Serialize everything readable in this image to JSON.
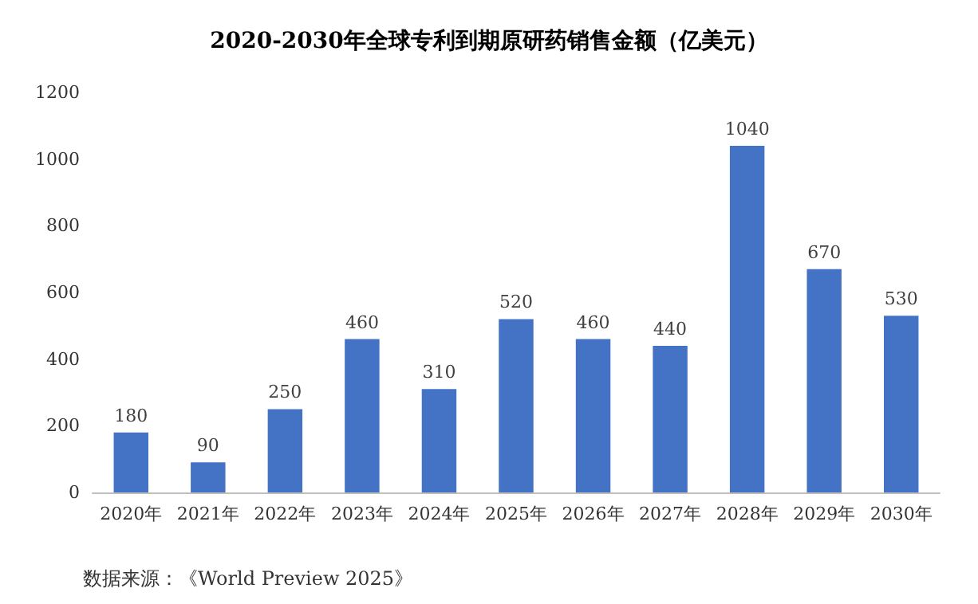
{
  "chart_data": {
    "type": "bar",
    "title": "2020-2030年全球专利到期原研药销售金额（亿美元）",
    "categories": [
      "2020年",
      "2021年",
      "2022年",
      "2023年",
      "2024年",
      "2025年",
      "2026年",
      "2027年",
      "2028年",
      "2029年",
      "2030年"
    ],
    "values": [
      180,
      90,
      250,
      460,
      310,
      520,
      460,
      440,
      1040,
      670,
      530
    ],
    "color": "#4472c4",
    "ylim": [
      0,
      1200
    ],
    "yticks": [
      0,
      200,
      400,
      600,
      800,
      1000,
      1200
    ],
    "grid": false,
    "data_labels": true,
    "annotations": [
      "数据来源：《World Preview 2025》"
    ]
  }
}
